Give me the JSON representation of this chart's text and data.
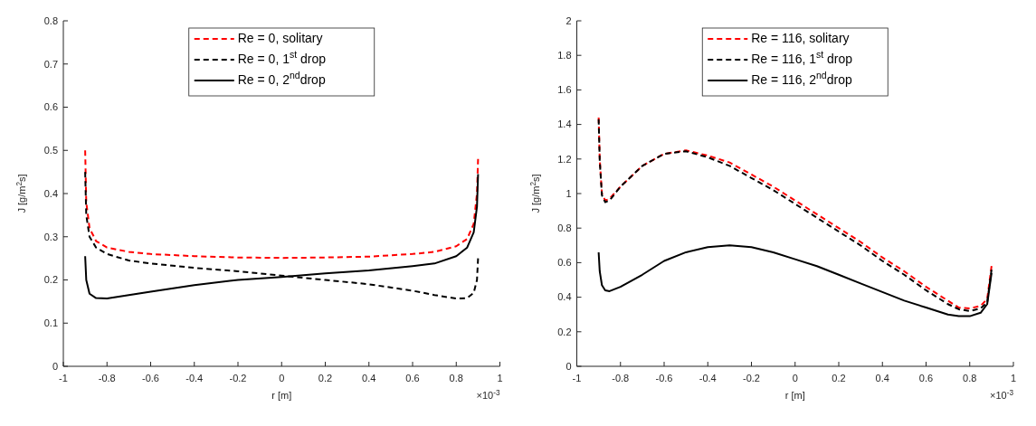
{
  "chart_data": [
    {
      "type": "line",
      "xlabel": "r [m]",
      "ylabel": "J [g/m$^{2}$s]",
      "annotations": [
        "×10$^{-3}$"
      ],
      "xlim": [
        -1,
        1
      ],
      "xticks": [
        -1,
        -0.8,
        -0.6,
        -0.4,
        -0.2,
        0,
        0.2,
        0.4,
        0.6,
        0.8,
        1
      ],
      "ylim": [
        0,
        0.8
      ],
      "yticks": [
        0,
        0.1,
        0.2,
        0.3,
        0.4,
        0.5,
        0.6,
        0.7,
        0.8
      ],
      "legend": "top",
      "grid": false,
      "x": [
        -0.9,
        -0.895,
        -0.88,
        -0.85,
        -0.8,
        -0.7,
        -0.6,
        -0.4,
        -0.2,
        0,
        0.2,
        0.4,
        0.6,
        0.7,
        0.8,
        0.85,
        0.88,
        0.895,
        0.9
      ],
      "series": [
        {
          "name": "Re = 0, solitary",
          "color": "#ff0000",
          "line_style": "dashed",
          "values": [
            0.5,
            0.38,
            0.32,
            0.29,
            0.275,
            0.265,
            0.26,
            0.255,
            0.252,
            0.251,
            0.252,
            0.254,
            0.26,
            0.265,
            0.278,
            0.295,
            0.33,
            0.4,
            0.48
          ]
        },
        {
          "name": "Re = 0, 1$^{st}$ drop",
          "color": "#000000",
          "line_style": "dashed",
          "values": [
            0.45,
            0.35,
            0.3,
            0.275,
            0.26,
            0.245,
            0.238,
            0.228,
            0.22,
            0.21,
            0.2,
            0.19,
            0.175,
            0.165,
            0.157,
            0.158,
            0.17,
            0.2,
            0.25
          ]
        },
        {
          "name": "Re = 0, 2$^{nd}$drop",
          "color": "#000000",
          "line_style": "solid",
          "values": [
            0.255,
            0.2,
            0.168,
            0.158,
            0.157,
            0.165,
            0.173,
            0.188,
            0.2,
            0.207,
            0.215,
            0.222,
            0.232,
            0.238,
            0.255,
            0.275,
            0.31,
            0.37,
            0.445
          ]
        }
      ]
    },
    {
      "type": "line",
      "xlabel": "r [m]",
      "ylabel": "J [g/m$^{2}$s]",
      "annotations": [
        "×10$^{-3}$"
      ],
      "xlim": [
        -1,
        1
      ],
      "xticks": [
        -1,
        -0.8,
        -0.6,
        -0.4,
        -0.2,
        0,
        0.2,
        0.4,
        0.6,
        0.8,
        1
      ],
      "ylim": [
        0,
        2
      ],
      "yticks": [
        0,
        0.2,
        0.4,
        0.6,
        0.8,
        1,
        1.2,
        1.4,
        1.6,
        1.8,
        2
      ],
      "legend": "top",
      "grid": false,
      "x": [
        -0.9,
        -0.895,
        -0.885,
        -0.87,
        -0.85,
        -0.8,
        -0.7,
        -0.6,
        -0.5,
        -0.4,
        -0.3,
        -0.2,
        -0.1,
        0,
        0.1,
        0.2,
        0.3,
        0.4,
        0.5,
        0.6,
        0.7,
        0.75,
        0.8,
        0.85,
        0.88,
        0.9
      ],
      "series": [
        {
          "name": "Re = 116, solitary",
          "color": "#ff0000",
          "line_style": "dashed",
          "values": [
            1.44,
            1.2,
            1.0,
            0.96,
            0.97,
            1.04,
            1.16,
            1.23,
            1.25,
            1.22,
            1.18,
            1.11,
            1.04,
            0.96,
            0.88,
            0.8,
            0.72,
            0.63,
            0.55,
            0.46,
            0.38,
            0.34,
            0.335,
            0.35,
            0.39,
            0.58
          ]
        },
        {
          "name": "Re = 116, 1$^{st}$ drop",
          "color": "#000000",
          "line_style": "dashed",
          "values": [
            1.43,
            1.19,
            0.99,
            0.95,
            0.96,
            1.04,
            1.16,
            1.23,
            1.245,
            1.21,
            1.16,
            1.09,
            1.02,
            0.94,
            0.86,
            0.78,
            0.7,
            0.61,
            0.53,
            0.44,
            0.36,
            0.33,
            0.32,
            0.335,
            0.37,
            0.56
          ]
        },
        {
          "name": "Re = 116, 2$^{nd}$drop",
          "color": "#000000",
          "line_style": "solid",
          "values": [
            0.66,
            0.55,
            0.47,
            0.44,
            0.435,
            0.46,
            0.53,
            0.61,
            0.66,
            0.69,
            0.7,
            0.69,
            0.66,
            0.62,
            0.58,
            0.53,
            0.48,
            0.43,
            0.38,
            0.34,
            0.3,
            0.29,
            0.29,
            0.31,
            0.36,
            0.54
          ]
        }
      ]
    }
  ]
}
